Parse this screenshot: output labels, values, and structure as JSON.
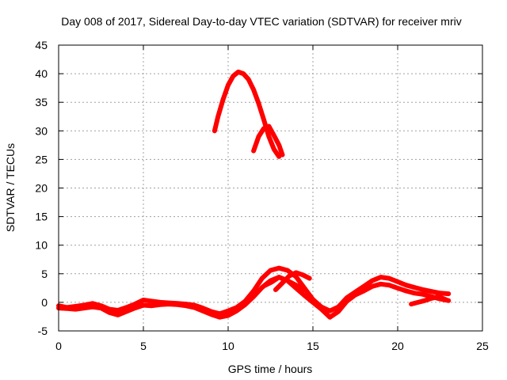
{
  "chart_data": {
    "type": "line",
    "title": "Day 008 of 2017, Sidereal Day-to-day VTEC variation (SDTVAR) for receiver mriv",
    "xlabel": "GPS time / hours",
    "ylabel": "SDTVAR / TECUs",
    "xlim": [
      0,
      25
    ],
    "ylim": [
      -5,
      45
    ],
    "xticks": [
      0,
      5,
      10,
      15,
      20,
      25
    ],
    "yticks": [
      -5,
      0,
      5,
      10,
      15,
      20,
      25,
      30,
      35,
      40,
      45
    ],
    "xtick_labels": [
      "0",
      "5",
      "10",
      "15",
      "20",
      "25"
    ],
    "ytick_labels": [
      "-5",
      "0",
      "5",
      "10",
      "15",
      "20",
      "25",
      "30",
      "35",
      "40",
      "45"
    ],
    "grid": true,
    "color": "#ff0000",
    "series": [
      {
        "name": "baseline-a",
        "x": [
          0,
          0.5,
          1,
          1.5,
          2,
          2.5,
          3,
          3.5,
          4,
          4.5,
          5,
          5.5,
          6,
          6.5,
          7,
          7.5,
          8,
          8.5,
          9,
          9.5,
          10,
          10.5,
          11,
          11.5,
          12,
          12.5,
          13,
          13.5,
          14,
          14.5,
          15,
          15.5,
          16,
          16.5,
          17,
          17.5,
          18,
          18.5,
          19,
          19.5,
          20,
          20.5,
          21,
          21.5,
          22,
          22.5,
          23
        ],
        "y": [
          -0.6,
          -0.9,
          -0.7,
          -0.5,
          -0.2,
          -0.6,
          -1.2,
          -1.4,
          -0.9,
          -0.3,
          0.4,
          0.2,
          0.0,
          -0.1,
          -0.2,
          -0.3,
          -0.5,
          -1.0,
          -1.6,
          -2.0,
          -1.5,
          -0.9,
          0.2,
          2.0,
          4.2,
          5.6,
          6.0,
          5.6,
          4.5,
          2.5,
          0.5,
          -0.8,
          -1.5,
          -0.8,
          0.8,
          1.8,
          2.8,
          3.8,
          4.4,
          4.2,
          3.6,
          3.0,
          2.6,
          2.2,
          1.9,
          1.6,
          1.5
        ]
      },
      {
        "name": "baseline-b",
        "x": [
          0,
          0.5,
          1,
          1.5,
          2,
          2.5,
          3,
          3.5,
          4,
          4.5,
          5,
          5.5,
          6,
          6.5,
          7,
          7.5,
          8,
          8.5,
          9,
          9.5,
          10,
          10.5,
          11,
          11.5,
          12,
          12.5,
          13,
          13.5,
          14,
          14.5,
          15,
          15.5,
          16,
          16.5,
          17,
          17.5,
          18,
          18.5,
          19,
          19.5,
          20,
          20.5,
          21,
          21.5,
          22,
          22.5,
          23
        ],
        "y": [
          -1.0,
          -1.1,
          -1.2,
          -1.0,
          -0.8,
          -1.0,
          -1.8,
          -2.2,
          -1.6,
          -1.0,
          -0.5,
          -0.6,
          -0.4,
          -0.3,
          -0.4,
          -0.6,
          -0.9,
          -1.5,
          -2.1,
          -2.6,
          -2.3,
          -1.5,
          -0.4,
          1.0,
          2.6,
          3.8,
          4.4,
          3.8,
          2.5,
          1.2,
          0.0,
          -1.2,
          -2.6,
          -1.6,
          0.2,
          1.3,
          2.0,
          2.8,
          3.2,
          3.0,
          2.5,
          2.0,
          1.6,
          1.4,
          1.0,
          0.6,
          0.3
        ]
      },
      {
        "name": "hump-a",
        "x": [
          12.8,
          13.2,
          13.6,
          14.0,
          14.4,
          14.8
        ],
        "y": [
          2.2,
          3.4,
          4.6,
          5.2,
          4.8,
          4.2
        ]
      },
      {
        "name": "hump-b",
        "x": [
          12.2,
          12.6,
          13.0,
          13.5,
          14.0,
          14.5
        ],
        "y": [
          3.0,
          3.6,
          4.4,
          3.8,
          3.0,
          2.2
        ]
      },
      {
        "name": "tail-a",
        "x": [
          20.8,
          21.2,
          21.6,
          22.0,
          22.4,
          22.9
        ],
        "y": [
          -0.3,
          0.0,
          0.3,
          0.7,
          1.0,
          0.4
        ]
      },
      {
        "name": "arc-large",
        "x": [
          9.2,
          9.4,
          9.7,
          10.0,
          10.3,
          10.6,
          10.9,
          11.2,
          11.5,
          11.8,
          12.1,
          12.4,
          12.7,
          13.0
        ],
        "y": [
          30.0,
          32.5,
          35.5,
          38.0,
          39.6,
          40.3,
          40.0,
          39.0,
          37.2,
          34.8,
          32.0,
          29.0,
          26.8,
          25.5
        ]
      },
      {
        "name": "arc-small",
        "x": [
          11.5,
          11.8,
          12.1,
          12.4,
          12.7,
          13.0,
          13.2
        ],
        "y": [
          26.5,
          29.0,
          30.4,
          30.8,
          29.2,
          27.5,
          25.8
        ]
      }
    ]
  }
}
